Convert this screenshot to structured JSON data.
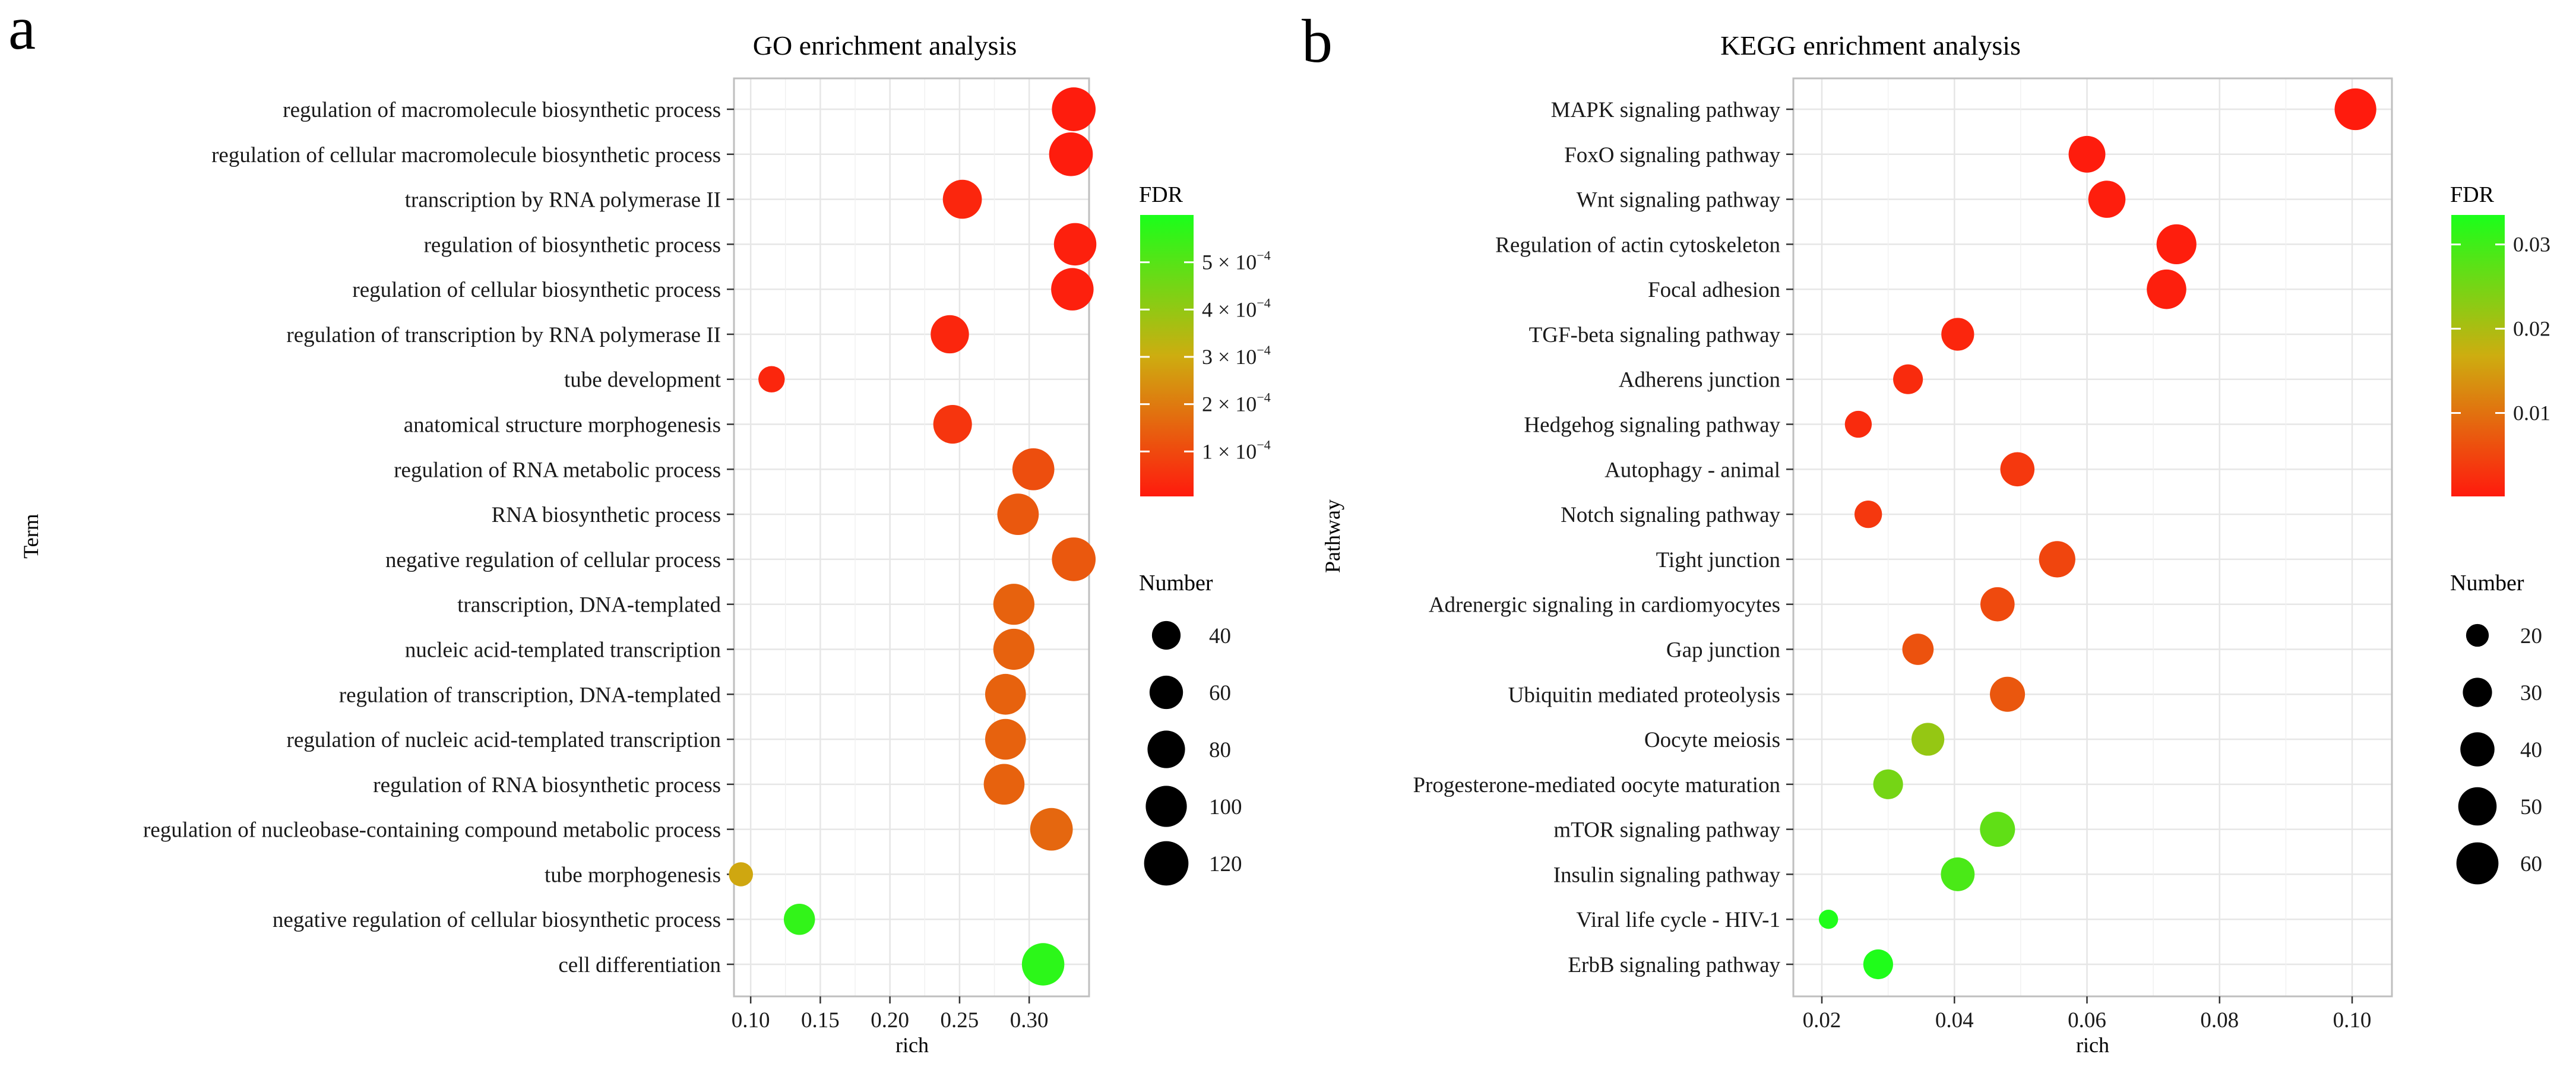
{
  "figure": {
    "panels": [
      {
        "letter": "a"
      },
      {
        "letter": "b"
      }
    ]
  },
  "colors": {
    "low": "#ff1a0d",
    "mid": "#cdad10",
    "high": "#1aff1a",
    "panel_border": "#bfbfbf",
    "grid": "#e6e6e6",
    "text": "#1a1a1a",
    "size_key_dot": "#000000"
  },
  "chart_data": [
    {
      "type": "scatter",
      "title": "GO enrichment analysis",
      "xlabel": "rich",
      "ylabel": "Term",
      "xlim": [
        0.088,
        0.343
      ],
      "x_ticks": [
        0.1,
        0.15,
        0.2,
        0.25,
        0.3
      ],
      "x_tick_labels": [
        "0.10",
        "0.15",
        "0.20",
        "0.25",
        "0.30"
      ],
      "grid": true,
      "categories": [
        "regulation of macromolecule biosynthetic process",
        "regulation of cellular macromolecule biosynthetic process",
        "transcription by RNA polymerase II",
        "regulation of biosynthetic process",
        "regulation of cellular biosynthetic process",
        "regulation of transcription by RNA polymerase II",
        "tube development",
        "anatomical structure morphogenesis",
        "regulation of RNA metabolic process",
        "RNA biosynthetic process",
        "negative regulation of cellular process",
        "transcription, DNA-templated",
        "nucleic acid-templated transcription",
        "regulation of transcription, DNA-templated",
        "regulation of nucleic acid-templated transcription",
        "regulation of RNA biosynthetic process",
        "regulation of nucleobase-containing compound metabolic process",
        "tube morphogenesis",
        "negative regulation of cellular biosynthetic process",
        "cell differentiation"
      ],
      "points": [
        {
          "rich": 0.332,
          "number": 116,
          "fdr": 1e-05
        },
        {
          "rich": 0.33,
          "number": 116,
          "fdr": 1e-05
        },
        {
          "rich": 0.252,
          "number": 88,
          "fdr": 3e-05
        },
        {
          "rich": 0.333,
          "number": 108,
          "fdr": 1.8e-05
        },
        {
          "rich": 0.331,
          "number": 108,
          "fdr": 1.8e-05
        },
        {
          "rich": 0.243,
          "number": 84,
          "fdr": 3e-05
        },
        {
          "rich": 0.115,
          "number": 32,
          "fdr": 3e-05
        },
        {
          "rich": 0.245,
          "number": 86,
          "fdr": 6e-05
        },
        {
          "rich": 0.303,
          "number": 105,
          "fdr": 0.00011
        },
        {
          "rich": 0.292,
          "number": 102,
          "fdr": 0.00013
        },
        {
          "rich": 0.332,
          "number": 116,
          "fdr": 0.00013
        },
        {
          "rich": 0.289,
          "number": 100,
          "fdr": 0.00015
        },
        {
          "rich": 0.289,
          "number": 100,
          "fdr": 0.00015
        },
        {
          "rich": 0.283,
          "number": 98,
          "fdr": 0.00015
        },
        {
          "rich": 0.283,
          "number": 98,
          "fdr": 0.00015
        },
        {
          "rich": 0.282,
          "number": 98,
          "fdr": 0.00015
        },
        {
          "rich": 0.316,
          "number": 109,
          "fdr": 0.00016
        },
        {
          "rich": 0.093,
          "number": 25,
          "fdr": 0.00029
        },
        {
          "rich": 0.135,
          "number": 50,
          "fdr": 0.00056
        },
        {
          "rich": 0.31,
          "number": 108,
          "fdr": 0.00057
        }
      ],
      "color_legend": {
        "title": "FDR",
        "min": 5e-06,
        "max": 0.0006,
        "tick_values": [
          0.0001,
          0.0002,
          0.0003,
          0.0004,
          0.0005
        ],
        "tick_labels": [
          {
            "coef": "1",
            "exp": "−4"
          },
          {
            "coef": "2",
            "exp": "−4"
          },
          {
            "coef": "3",
            "exp": "−4"
          },
          {
            "coef": "4",
            "exp": "−4"
          },
          {
            "coef": "5",
            "exp": "−4"
          }
        ]
      },
      "size_legend": {
        "title": "Number",
        "values": [
          40,
          60,
          80,
          100,
          120
        ],
        "labels": [
          "40",
          "60",
          "80",
          "100",
          "120"
        ]
      }
    },
    {
      "type": "scatter",
      "title": "KEGG enrichment analysis",
      "xlabel": "rich",
      "ylabel": "Pathway",
      "xlim": [
        0.0157,
        0.106
      ],
      "x_ticks": [
        0.02,
        0.04,
        0.06,
        0.08,
        0.1
      ],
      "x_tick_labels": [
        "0.02",
        "0.04",
        "0.06",
        "0.08",
        "0.10"
      ],
      "grid": true,
      "categories": [
        "MAPK signaling pathway",
        "FoxO signaling pathway",
        "Wnt signaling pathway",
        "Regulation of actin cytoskeleton",
        "Focal adhesion",
        "TGF-beta signaling pathway",
        "Adherens junction",
        "Hedgehog signaling pathway",
        "Autophagy - animal",
        "Notch signaling pathway",
        "Tight junction",
        "Adrenergic signaling in cardiomyocytes",
        "Gap junction",
        "Ubiquitin mediated proteolysis",
        "Oocyte meiosis",
        "Progesterone-mediated oocyte maturation",
        "mTOR signaling pathway",
        "Insulin signaling pathway",
        "Viral life cycle - HIV-1",
        "ErbB signaling pathway"
      ],
      "points": [
        {
          "rich": 0.1005,
          "number": 59,
          "fdr": 0.0002
        },
        {
          "rich": 0.06,
          "number": 46,
          "fdr": 0.0003
        },
        {
          "rich": 0.063,
          "number": 47,
          "fdr": 0.0006
        },
        {
          "rich": 0.0735,
          "number": 54,
          "fdr": 0.0006
        },
        {
          "rich": 0.072,
          "number": 53,
          "fdr": 0.0007
        },
        {
          "rich": 0.0405,
          "number": 37,
          "fdr": 0.0015
        },
        {
          "rich": 0.033,
          "number": 31,
          "fdr": 0.002
        },
        {
          "rich": 0.0255,
          "number": 26,
          "fdr": 0.002
        },
        {
          "rich": 0.0495,
          "number": 40,
          "fdr": 0.0035
        },
        {
          "rich": 0.027,
          "number": 27,
          "fdr": 0.0035
        },
        {
          "rich": 0.0555,
          "number": 45,
          "fdr": 0.005
        },
        {
          "rich": 0.0465,
          "number": 40,
          "fdr": 0.0055
        },
        {
          "rich": 0.0345,
          "number": 34,
          "fdr": 0.0065
        },
        {
          "rich": 0.048,
          "number": 42,
          "fdr": 0.007
        },
        {
          "rich": 0.036,
          "number": 37,
          "fdr": 0.022
        },
        {
          "rich": 0.03,
          "number": 31,
          "fdr": 0.025
        },
        {
          "rich": 0.0465,
          "number": 42,
          "fdr": 0.027
        },
        {
          "rich": 0.0405,
          "number": 39,
          "fdr": 0.029
        },
        {
          "rich": 0.021,
          "number": 16,
          "fdr": 0.033
        },
        {
          "rich": 0.0285,
          "number": 31,
          "fdr": 0.033
        }
      ],
      "color_legend": {
        "title": "FDR",
        "min": 0.0001,
        "max": 0.0335,
        "tick_values": [
          0.01,
          0.02,
          0.03
        ],
        "tick_labels": [
          {
            "coef": "0.01",
            "exp": ""
          },
          {
            "coef": "0.02",
            "exp": ""
          },
          {
            "coef": "0.03",
            "exp": ""
          }
        ]
      },
      "size_legend": {
        "title": "Number",
        "values": [
          20,
          30,
          40,
          50,
          60
        ],
        "labels": [
          "20",
          "30",
          "40",
          "50",
          "60"
        ]
      }
    }
  ]
}
